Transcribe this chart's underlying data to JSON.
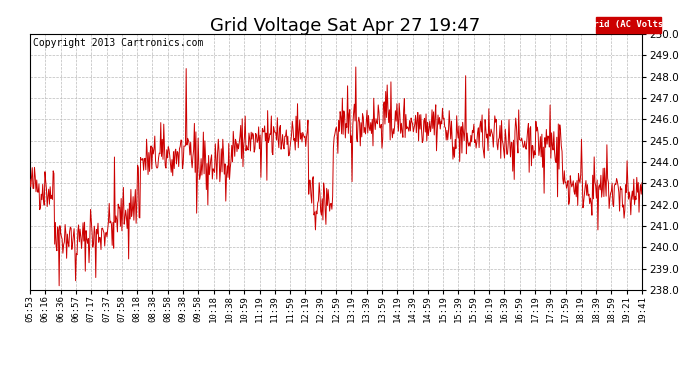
{
  "title": "Grid Voltage Sat Apr 27 19:47",
  "copyright": "Copyright 2013 Cartronics.com",
  "legend_label": "Grid (AC Volts)",
  "legend_bg": "#cc0000",
  "legend_text_color": "#ffffff",
  "line_color": "#cc0000",
  "bg_color": "#ffffff",
  "grid_color": "#bbbbbb",
  "ylim": [
    238.0,
    250.0
  ],
  "yticks": [
    238.0,
    239.0,
    240.0,
    241.0,
    242.0,
    243.0,
    244.0,
    245.0,
    246.0,
    247.0,
    248.0,
    249.0,
    250.0
  ],
  "xtick_labels": [
    "05:53",
    "06:16",
    "06:36",
    "06:57",
    "07:17",
    "07:37",
    "07:58",
    "08:18",
    "08:38",
    "08:58",
    "09:38",
    "09:58",
    "10:18",
    "10:38",
    "10:59",
    "11:19",
    "11:39",
    "11:59",
    "12:19",
    "12:39",
    "12:59",
    "13:19",
    "13:39",
    "13:59",
    "14:19",
    "14:39",
    "14:59",
    "15:19",
    "15:39",
    "15:59",
    "16:19",
    "16:39",
    "16:59",
    "17:19",
    "17:39",
    "17:59",
    "18:19",
    "18:39",
    "18:59",
    "19:21",
    "19:41"
  ],
  "seed": 42,
  "n_points": 820,
  "title_fontsize": 13,
  "copyright_fontsize": 7,
  "ytick_fontsize": 7.5,
  "xtick_fontsize": 6.5
}
